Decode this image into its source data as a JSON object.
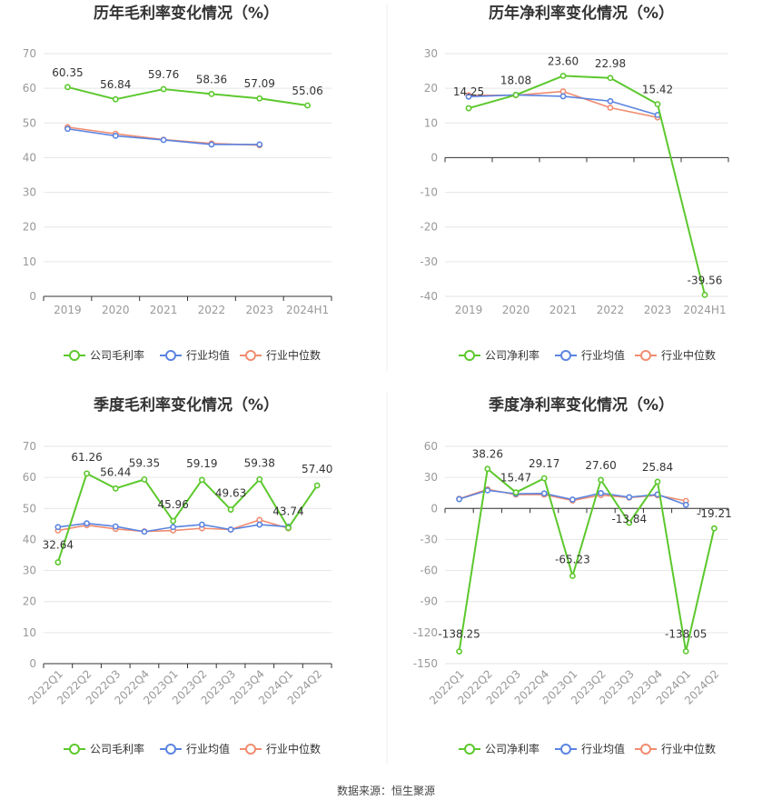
{
  "footer": {
    "source": "数据来源：恒生聚源"
  },
  "colors": {
    "company": "#5cc82d",
    "avg": "#5b84e0",
    "median": "#f08c70",
    "grid": "#e6e6e6",
    "axis": "#333333",
    "text": "#333333",
    "tick": "#999999"
  },
  "legend": {
    "company_gross": "公司毛利率",
    "company_net": "公司净利率",
    "avg": "行业均值",
    "median": "行业中位数"
  },
  "chart_data": [
    {
      "type": "line",
      "title": "历年毛利率变化情况（%）",
      "categories": [
        "2019",
        "2020",
        "2021",
        "2022",
        "2023",
        "2024H1"
      ],
      "ylim": [
        0,
        70
      ],
      "yticks": [
        0,
        10,
        20,
        30,
        40,
        50,
        60,
        70
      ],
      "grid": true,
      "legend_position": "bottom",
      "series": [
        {
          "name": "公司毛利率",
          "role": "company",
          "values": [
            60.35,
            56.84,
            59.76,
            58.36,
            57.09,
            55.06
          ],
          "labels": [
            "60.35",
            "56.84",
            "59.76",
            "58.36",
            "57.09",
            "55.06"
          ]
        },
        {
          "name": "行业均值",
          "role": "avg",
          "values": [
            48.3,
            46.3,
            45.1,
            43.8,
            43.8,
            null
          ]
        },
        {
          "name": "行业中位数",
          "role": "median",
          "values": [
            48.8,
            46.9,
            45.2,
            44.1,
            43.6,
            null
          ]
        }
      ]
    },
    {
      "type": "line",
      "title": "历年净利率变化情况（%）",
      "categories": [
        "2019",
        "2020",
        "2021",
        "2022",
        "2023",
        "2024H1"
      ],
      "ylim": [
        -40,
        30
      ],
      "yticks": [
        -40,
        -30,
        -20,
        -10,
        0,
        10,
        20,
        30
      ],
      "grid": true,
      "legend_position": "bottom",
      "series": [
        {
          "name": "公司净利率",
          "role": "company",
          "values": [
            14.25,
            18.08,
            23.6,
            22.98,
            15.42,
            -39.56
          ],
          "labels": [
            "14.25",
            "18.08",
            "23.60",
            "22.98",
            "15.42",
            "-39.56"
          ]
        },
        {
          "name": "行业均值",
          "role": "avg",
          "values": [
            17.6,
            18.1,
            17.7,
            16.3,
            12.3,
            null
          ]
        },
        {
          "name": "行业中位数",
          "role": "median",
          "values": [
            18.0,
            18.0,
            19.1,
            14.4,
            11.6,
            null
          ]
        }
      ]
    },
    {
      "type": "line",
      "title": "季度毛利率变化情况（%）",
      "categories": [
        "2022Q1",
        "2022Q2",
        "2022Q3",
        "2022Q4",
        "2023Q1",
        "2023Q2",
        "2023Q3",
        "2023Q4",
        "2024Q1",
        "2024Q2"
      ],
      "ylim": [
        0,
        70
      ],
      "yticks": [
        0,
        10,
        20,
        30,
        40,
        50,
        60,
        70
      ],
      "grid": true,
      "legend_position": "bottom",
      "series": [
        {
          "name": "公司毛利率",
          "role": "company",
          "values": [
            32.64,
            61.26,
            56.44,
            59.35,
            45.96,
            59.19,
            49.63,
            59.38,
            43.74,
            57.4
          ],
          "labels": [
            "32.64",
            "61.26",
            "56.44",
            "59.35",
            "45.96",
            "59.19",
            "49.63",
            "59.38",
            "43.74",
            "57.40"
          ]
        },
        {
          "name": "行业均值",
          "role": "avg",
          "values": [
            44.0,
            45.2,
            44.2,
            42.5,
            44.0,
            44.8,
            43.2,
            44.8,
            44.1,
            null
          ]
        },
        {
          "name": "行业中位数",
          "role": "median",
          "values": [
            42.9,
            44.6,
            43.4,
            42.6,
            42.9,
            43.6,
            43.2,
            46.3,
            43.6,
            null
          ]
        }
      ]
    },
    {
      "type": "line",
      "title": "季度净利率变化情况（%）",
      "categories": [
        "2022Q1",
        "2022Q2",
        "2022Q3",
        "2022Q4",
        "2023Q1",
        "2023Q2",
        "2023Q3",
        "2023Q4",
        "2024Q1",
        "2024Q2"
      ],
      "ylim": [
        -150,
        60
      ],
      "yticks": [
        -150,
        -120,
        -90,
        -60,
        -30,
        0,
        30,
        60
      ],
      "grid": true,
      "legend_position": "bottom",
      "series": [
        {
          "name": "公司净利率",
          "role": "company",
          "values": [
            -138.25,
            38.26,
            15.47,
            29.17,
            -65.23,
            27.6,
            -13.84,
            25.84,
            -138.05,
            -19.21
          ],
          "labels": [
            "-138.25",
            "38.26",
            "15.47",
            "29.17",
            "-65.23",
            "27.60",
            "-13.84",
            "25.84",
            "-138.05",
            "-19.21"
          ]
        },
        {
          "name": "行业均值",
          "role": "avg",
          "values": [
            9.0,
            17.5,
            14.2,
            14.5,
            8.6,
            14.8,
            10.9,
            13.5,
            3.5,
            null
          ]
        },
        {
          "name": "行业中位数",
          "role": "median",
          "values": [
            9.3,
            18.5,
            13.4,
            13.4,
            7.6,
            12.9,
            10.5,
            12.7,
            7.3,
            null
          ]
        }
      ]
    }
  ]
}
